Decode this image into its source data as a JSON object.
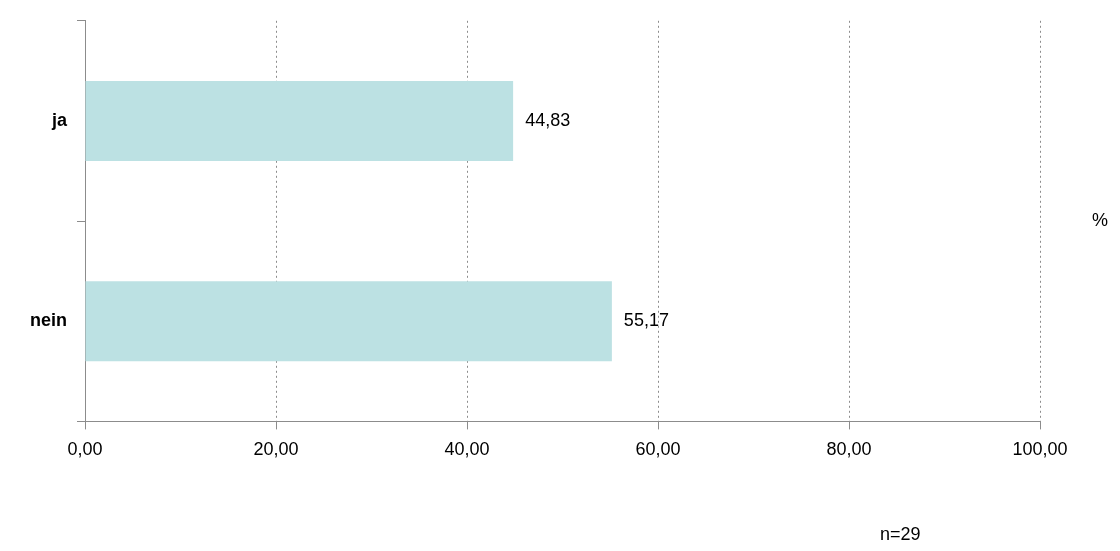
{
  "chart_data": {
    "type": "bar",
    "orientation": "horizontal",
    "categories": [
      "ja",
      "nein"
    ],
    "values": [
      44.83,
      55.17
    ],
    "value_labels": [
      "44,83",
      "55,17"
    ],
    "color": "#bce1e3",
    "data_labels": true,
    "grid": true,
    "xlim": [
      0,
      100
    ],
    "xticks": [
      {
        "value": 0,
        "label": "0,00"
      },
      {
        "value": 20,
        "label": "20,00"
      },
      {
        "value": 40,
        "label": "40,00"
      },
      {
        "value": 60,
        "label": "60,00"
      },
      {
        "value": 80,
        "label": "80,00"
      },
      {
        "value": 100,
        "label": "100,00"
      }
    ],
    "annotations": [
      "%",
      "n=29"
    ]
  }
}
